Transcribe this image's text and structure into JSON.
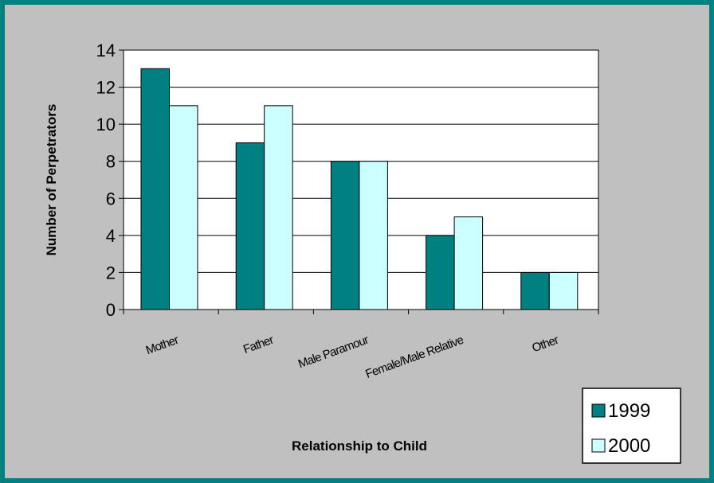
{
  "chart_data": {
    "type": "bar",
    "title": "",
    "xlabel": "Relationship to Child",
    "ylabel": "Number of Perpetrators",
    "categories": [
      "Mother",
      "Father",
      "Male Paramour",
      "Female/Male Relative",
      "Other"
    ],
    "series": [
      {
        "name": "1999",
        "values": [
          13,
          9,
          8,
          4,
          2
        ],
        "color": "#008080"
      },
      {
        "name": "2000",
        "values": [
          11,
          11,
          8,
          5,
          2
        ],
        "color": "#ccffff"
      }
    ],
    "ylim": [
      0,
      14
    ],
    "yticks": [
      0,
      2,
      4,
      6,
      8,
      10,
      12,
      14
    ],
    "grid": true,
    "legend_position": "bottom-right"
  }
}
